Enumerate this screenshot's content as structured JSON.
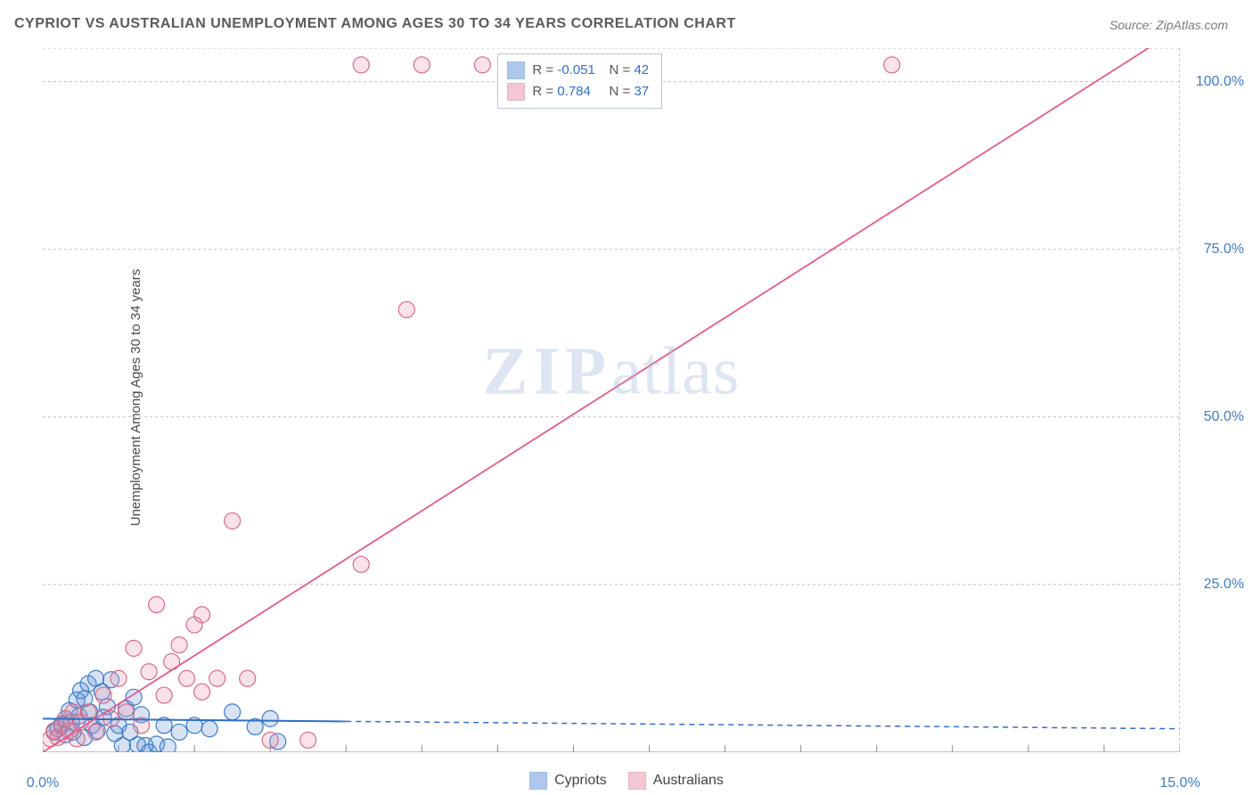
{
  "title": "CYPRIOT VS AUSTRALIAN UNEMPLOYMENT AMONG AGES 30 TO 34 YEARS CORRELATION CHART",
  "source": "Source: ZipAtlas.com",
  "ylabel": "Unemployment Among Ages 30 to 34 years",
  "watermark_a": "ZIP",
  "watermark_b": "atlas",
  "chart": {
    "type": "scatter",
    "xlim": [
      0,
      15
    ],
    "ylim": [
      0,
      105
    ],
    "x_ticks_major": [
      0,
      5,
      10,
      15
    ],
    "x_ticks_minor_step": 1,
    "y_ticks": [
      25,
      50,
      75,
      100
    ],
    "x_tick_labels": {
      "0": "0.0%",
      "15": "15.0%"
    },
    "y_tick_labels": {
      "25": "25.0%",
      "50": "50.0%",
      "75": "75.0%",
      "100": "100.0%"
    },
    "background_color": "#ffffff",
    "grid_color": "#bfbfbf",
    "axis_color": "#888888",
    "marker_radius": 9,
    "marker_stroke_width": 1.2,
    "marker_fill_opacity": 0.25,
    "series": [
      {
        "name": "Cypriots",
        "color": "#5f90d8",
        "stroke": "#3d7cc9",
        "R": "-0.051",
        "N": "42",
        "trend": {
          "slope": -0.1,
          "intercept": 5.0,
          "color": "#2f6fc6",
          "solid_until_x": 4.0,
          "width": 2
        },
        "points": [
          [
            0.15,
            3.0
          ],
          [
            0.2,
            3.5
          ],
          [
            0.25,
            4.2
          ],
          [
            0.3,
            2.6
          ],
          [
            0.3,
            5.0
          ],
          [
            0.35,
            6.2
          ],
          [
            0.38,
            4.5
          ],
          [
            0.4,
            3.0
          ],
          [
            0.45,
            7.8
          ],
          [
            0.48,
            5.4
          ],
          [
            0.5,
            9.2
          ],
          [
            0.55,
            2.2
          ],
          [
            0.55,
            8.0
          ],
          [
            0.6,
            10.2
          ],
          [
            0.62,
            6.0
          ],
          [
            0.65,
            4.0
          ],
          [
            0.7,
            11.0
          ],
          [
            0.72,
            3.2
          ],
          [
            0.78,
            9.0
          ],
          [
            0.8,
            5.2
          ],
          [
            0.85,
            6.8
          ],
          [
            0.9,
            10.8
          ],
          [
            0.95,
            2.8
          ],
          [
            1.0,
            4.0
          ],
          [
            1.05,
            1.0
          ],
          [
            1.1,
            6.5
          ],
          [
            1.15,
            3.0
          ],
          [
            1.2,
            8.2
          ],
          [
            1.25,
            1.1
          ],
          [
            1.3,
            5.6
          ],
          [
            1.35,
            1.0
          ],
          [
            1.4,
            0
          ],
          [
            1.5,
            1.2
          ],
          [
            1.6,
            4.0
          ],
          [
            1.65,
            0.8
          ],
          [
            1.8,
            3.0
          ],
          [
            2.0,
            4.0
          ],
          [
            2.2,
            3.5
          ],
          [
            2.5,
            6.0
          ],
          [
            2.8,
            3.8
          ],
          [
            3.0,
            5.0
          ],
          [
            3.1,
            1.6
          ]
        ]
      },
      {
        "name": "Australians",
        "color": "#e690a7",
        "stroke": "#d96a89",
        "R": "0.784",
        "N": "37",
        "trend": {
          "slope": 11.3,
          "intercept": -3.0,
          "color": "#e75a8c",
          "solid_until_x": 15.0,
          "width": 1.8
        },
        "points": [
          [
            0.1,
            2.0
          ],
          [
            0.15,
            3.2
          ],
          [
            0.2,
            2.2
          ],
          [
            0.25,
            4.0
          ],
          [
            0.3,
            5.0
          ],
          [
            0.35,
            3.2
          ],
          [
            0.4,
            6.0
          ],
          [
            0.45,
            2.0
          ],
          [
            0.5,
            4.5
          ],
          [
            0.6,
            6.0
          ],
          [
            0.7,
            3.0
          ],
          [
            0.8,
            8.5
          ],
          [
            0.9,
            5.0
          ],
          [
            1.0,
            11.0
          ],
          [
            1.1,
            6.0
          ],
          [
            1.2,
            15.5
          ],
          [
            1.3,
            4.0
          ],
          [
            1.4,
            12.0
          ],
          [
            1.5,
            22.0
          ],
          [
            1.6,
            8.5
          ],
          [
            1.7,
            13.5
          ],
          [
            1.8,
            16.0
          ],
          [
            1.9,
            11.0
          ],
          [
            2.0,
            19.0
          ],
          [
            2.1,
            20.5
          ],
          [
            2.1,
            9.0
          ],
          [
            2.3,
            11.0
          ],
          [
            2.5,
            34.5
          ],
          [
            2.7,
            11.0
          ],
          [
            3.0,
            1.8
          ],
          [
            3.5,
            1.8
          ],
          [
            4.2,
            28.0
          ],
          [
            4.8,
            66.0
          ],
          [
            4.2,
            102.5
          ],
          [
            5.0,
            102.5
          ],
          [
            5.8,
            102.5
          ],
          [
            11.2,
            102.5
          ]
        ]
      }
    ]
  },
  "legend_top": {
    "R_label": "R =",
    "N_label": "N ="
  },
  "legend_bottom": {
    "items": [
      "Cypriots",
      "Australians"
    ]
  }
}
